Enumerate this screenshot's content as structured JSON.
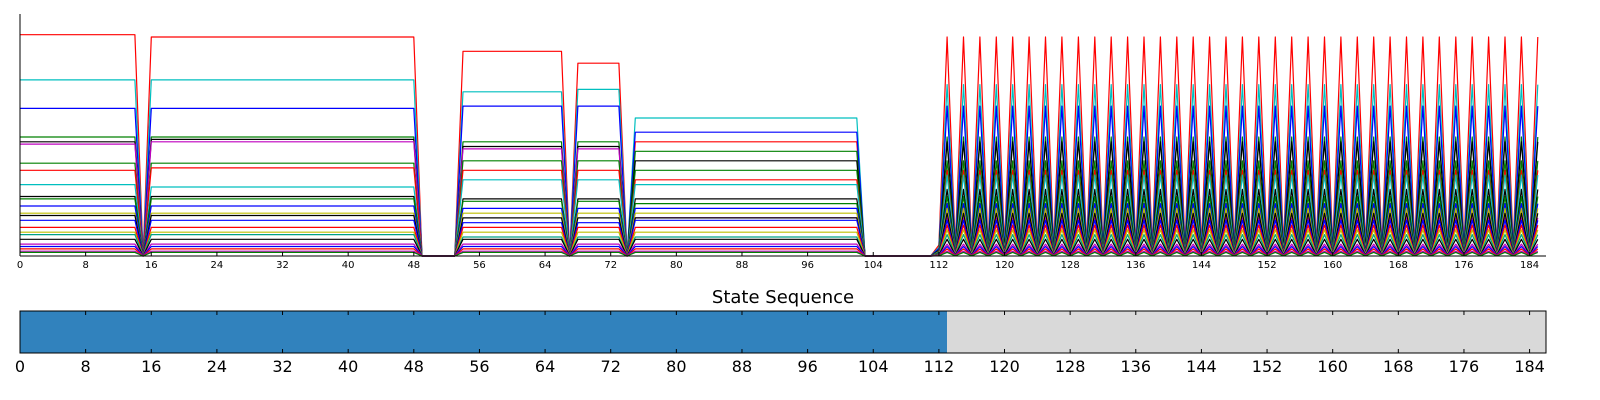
{
  "chart_data": [
    {
      "type": "line",
      "title": "",
      "xlabel": "",
      "ylabel": "",
      "xlim": [
        0,
        186
      ],
      "ylim": [
        0,
        1
      ],
      "y_ticks_shown": false,
      "grid": false,
      "legend": "none",
      "x_ticks": [
        0,
        8,
        16,
        24,
        32,
        40,
        48,
        56,
        64,
        72,
        80,
        88,
        96,
        104,
        112,
        120,
        128,
        136,
        144,
        152,
        160,
        168,
        176,
        184
      ],
      "x_tick_labels": [
        "0",
        "8",
        "16",
        "24",
        "32",
        "40",
        "48",
        "56",
        "64",
        "72",
        "80",
        "88",
        "96",
        "104",
        "112",
        "120",
        "128",
        "136",
        "144",
        "152",
        "160",
        "168",
        "176",
        "184"
      ],
      "series_colors": [
        "#ff0000",
        "#00bfbf",
        "#0000ff",
        "#008000",
        "#000000",
        "#bf00bf",
        "#bfbf00",
        "#00a087"
      ],
      "series": [
        {
          "color": "#ff0000",
          "levels": [
            0.93,
            0.92,
            0.86,
            0.81,
            0.48,
            0.92
          ]
        },
        {
          "color": "#00bfbf",
          "levels": [
            0.74,
            0.74,
            0.69,
            0.7,
            0.58,
            0.72
          ]
        },
        {
          "color": "#0000ff",
          "levels": [
            0.62,
            0.62,
            0.63,
            0.63,
            0.52,
            0.63
          ]
        },
        {
          "color": "#008000",
          "levels": [
            0.5,
            0.5,
            0.48,
            0.48,
            0.44,
            0.5
          ]
        },
        {
          "color": "#000000",
          "levels": [
            0.48,
            0.49,
            0.46,
            0.46,
            0.4,
            0.48
          ]
        },
        {
          "color": "#bf00bf",
          "levels": [
            0.47,
            0.48,
            0.45,
            0.45,
            0.16,
            0.16
          ]
        },
        {
          "color": "#008000",
          "levels": [
            0.39,
            0.39,
            0.4,
            0.4,
            0.36,
            0.4
          ]
        },
        {
          "color": "#ff0000",
          "levels": [
            0.36,
            0.37,
            0.36,
            0.36,
            0.32,
            0.36
          ]
        },
        {
          "color": "#00bfbf",
          "levels": [
            0.3,
            0.29,
            0.32,
            0.32,
            0.3,
            0.34
          ]
        },
        {
          "color": "#000000",
          "levels": [
            0.25,
            0.25,
            0.24,
            0.24,
            0.24,
            0.28
          ]
        },
        {
          "color": "#008000",
          "levels": [
            0.24,
            0.24,
            0.23,
            0.23,
            0.22,
            0.25
          ]
        },
        {
          "color": "#0000ff",
          "levels": [
            0.21,
            0.21,
            0.2,
            0.2,
            0.2,
            0.22
          ]
        },
        {
          "color": "#bfbf00",
          "levels": [
            0.18,
            0.18,
            0.18,
            0.18,
            0.18,
            0.2
          ]
        },
        {
          "color": "#000000",
          "levels": [
            0.17,
            0.17,
            0.16,
            0.16,
            0.16,
            0.18
          ]
        },
        {
          "color": "#0000ff",
          "levels": [
            0.15,
            0.15,
            0.14,
            0.14,
            0.15,
            0.15
          ]
        },
        {
          "color": "#ff0000",
          "levels": [
            0.12,
            0.12,
            0.12,
            0.12,
            0.12,
            0.13
          ]
        },
        {
          "color": "#bfbf00",
          "levels": [
            0.1,
            0.1,
            0.1,
            0.1,
            0.1,
            0.11
          ]
        },
        {
          "color": "#00a087",
          "levels": [
            0.09,
            0.09,
            0.08,
            0.08,
            0.08,
            0.09
          ]
        },
        {
          "color": "#000000",
          "levels": [
            0.07,
            0.07,
            0.07,
            0.07,
            0.07,
            0.07
          ]
        },
        {
          "color": "#bf00bf",
          "levels": [
            0.05,
            0.05,
            0.05,
            0.05,
            0.05,
            0.05
          ]
        },
        {
          "color": "#0000ff",
          "levels": [
            0.04,
            0.04,
            0.04,
            0.04,
            0.04,
            0.04
          ]
        },
        {
          "color": "#ff0000",
          "levels": [
            0.03,
            0.03,
            0.03,
            0.03,
            0.03,
            0.03
          ]
        },
        {
          "color": "#bf00bf",
          "levels": [
            0.02,
            0.02,
            0.02,
            0.02,
            0.02,
            0.02
          ]
        },
        {
          "color": "#008000",
          "levels": [
            0.015,
            0.015,
            0.015,
            0.015,
            0.015,
            0.015
          ]
        }
      ],
      "segments_x": [
        [
          0,
          14
        ],
        [
          16,
          48
        ],
        [
          54,
          66
        ],
        [
          68,
          73
        ],
        [
          75,
          102
        ],
        [
          112,
          186
        ]
      ],
      "dips_to_zero_at": [
        15,
        49,
        51,
        53,
        67,
        74,
        103,
        104,
        105,
        106,
        107,
        108,
        109,
        110,
        111
      ]
    },
    {
      "type": "bar",
      "title": "State Sequence",
      "xlabel": "",
      "ylabel": "",
      "xlim": [
        0,
        186
      ],
      "x_ticks": [
        0,
        8,
        16,
        24,
        32,
        40,
        48,
        56,
        64,
        72,
        80,
        88,
        96,
        104,
        112,
        120,
        128,
        136,
        144,
        152,
        160,
        168,
        176,
        184
      ],
      "x_tick_labels": [
        "0",
        "8",
        "16",
        "24",
        "32",
        "40",
        "48",
        "56",
        "64",
        "72",
        "80",
        "88",
        "96",
        "104",
        "112",
        "120",
        "128",
        "136",
        "144",
        "152",
        "160",
        "168",
        "176",
        "184"
      ],
      "states": [
        {
          "start": 0,
          "end": 113,
          "color": "#3182bd"
        },
        {
          "start": 113,
          "end": 186,
          "color": "#d9d9d9"
        }
      ]
    }
  ]
}
